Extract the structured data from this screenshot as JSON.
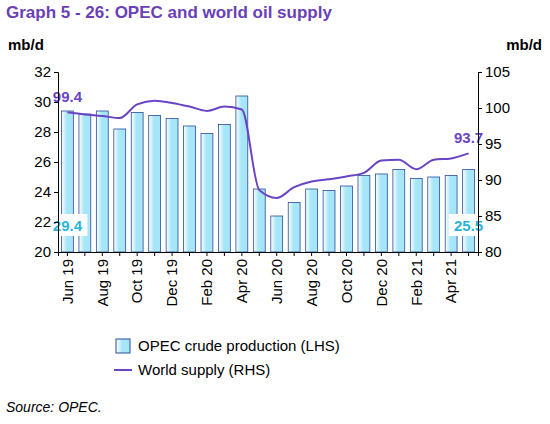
{
  "chart_data": {
    "type": "bar",
    "title": "Graph 5 - 26: OPEC and world oil supply",
    "y_label": "mb/d",
    "y2_label": "mb/d",
    "source": "Source: OPEC.",
    "categories": [
      "Jun 19",
      null,
      "Aug 19",
      null,
      "Oct 19",
      null,
      "Dec 19",
      null,
      "Feb 20",
      null,
      "Apr 20",
      null,
      "Jun 20",
      null,
      "Aug 20",
      null,
      "Oct 20",
      null,
      "Dec 20",
      null,
      "Feb 21",
      null,
      "Apr 21",
      null
    ],
    "ylim": [
      20,
      32
    ],
    "yticks": [
      20,
      22,
      24,
      26,
      28,
      30,
      32
    ],
    "y2lim": [
      80,
      105
    ],
    "y2ticks": [
      80,
      85,
      90,
      95,
      100,
      105
    ],
    "legend": "bottom",
    "series": [
      {
        "name": "OPEC crude production (LHS)",
        "type": "bar",
        "color": "#a6e6f8",
        "values": [
          29.4,
          29.2,
          29.4,
          28.2,
          29.3,
          29.1,
          28.9,
          28.4,
          27.9,
          28.5,
          30.4,
          24.2,
          22.4,
          23.3,
          24.2,
          24.1,
          24.4,
          25.1,
          25.2,
          25.5,
          24.9,
          25.0,
          25.1,
          25.5
        ],
        "value_labels": [
          "29.4",
          null,
          null,
          null,
          null,
          null,
          null,
          null,
          null,
          null,
          null,
          null,
          null,
          null,
          null,
          null,
          null,
          null,
          null,
          null,
          null,
          null,
          null,
          "25.5"
        ]
      },
      {
        "name": "World supply (RHS)",
        "type": "line",
        "axis": "y2",
        "color": "#6a44c4",
        "values": [
          99.4,
          99.1,
          98.9,
          98.6,
          100.5,
          101.0,
          100.7,
          100.2,
          99.6,
          100.2,
          99.8,
          88.6,
          87.5,
          89.0,
          89.8,
          90.1,
          90.5,
          91.0,
          92.7,
          92.8,
          91.5,
          92.8,
          93.0,
          93.7
        ],
        "value_labels": [
          "99.4",
          null,
          null,
          null,
          null,
          null,
          null,
          null,
          null,
          null,
          null,
          null,
          null,
          null,
          null,
          null,
          null,
          null,
          null,
          null,
          null,
          null,
          null,
          "93.7"
        ]
      }
    ]
  }
}
